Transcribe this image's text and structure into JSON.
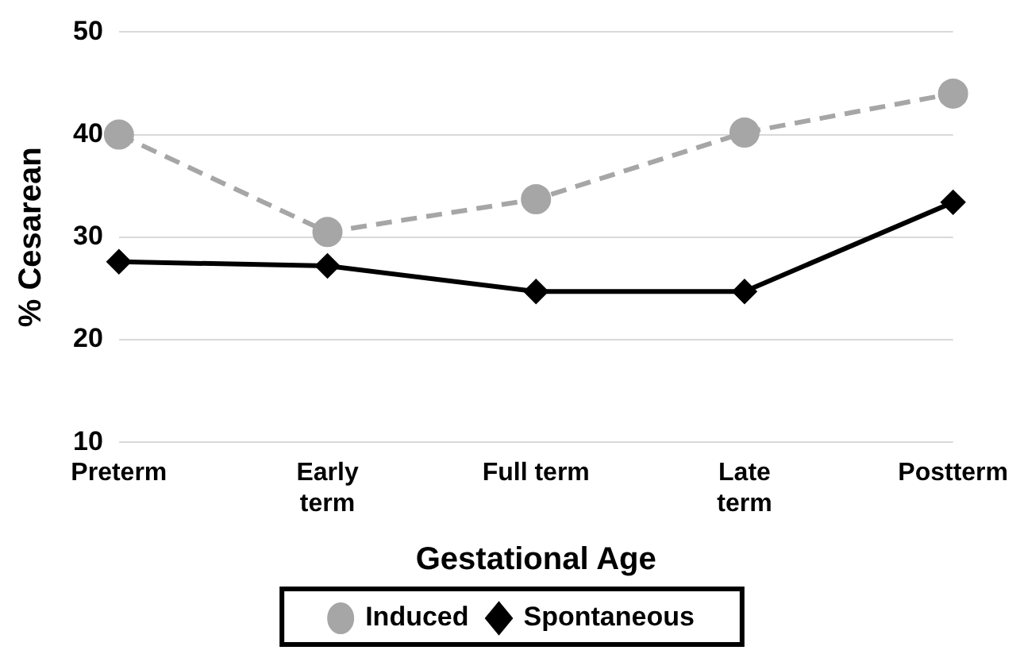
{
  "chart_data": {
    "type": "line",
    "xlabel": "Gestational Age",
    "ylabel": "% Cesarean",
    "categories": [
      "Preterm",
      "Early term",
      "Full term",
      "Late term",
      "Postterm"
    ],
    "series": [
      {
        "name": "Induced",
        "color": "#a6a6a6",
        "marker": "circle",
        "line_style": "dashed",
        "values": [
          40.0,
          30.5,
          33.7,
          40.2,
          44.0
        ]
      },
      {
        "name": "Spontaneous",
        "color": "#000000",
        "marker": "diamond",
        "line_style": "solid",
        "values": [
          27.6,
          27.2,
          24.7,
          24.7,
          33.4
        ]
      }
    ],
    "ylim": [
      10,
      50
    ],
    "yticks": [
      10,
      20,
      30,
      40,
      50
    ],
    "grid": "y",
    "legend": "bottom"
  }
}
